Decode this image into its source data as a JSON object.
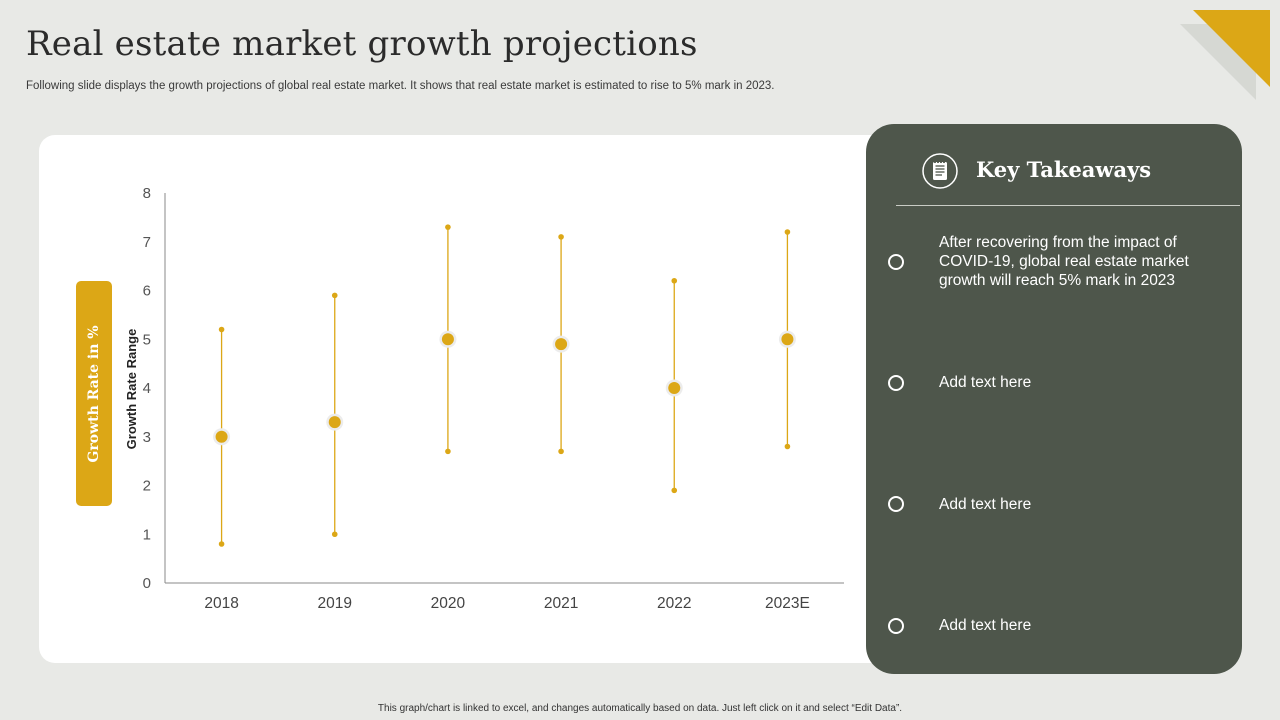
{
  "header": {
    "title": "Real estate market growth projections",
    "subtitle": "Following slide displays the growth projections of global real estate market. It shows that real estate market is estimated to rise to 5% mark in 2023."
  },
  "colors": {
    "accent": "#dca716",
    "panel": "#4e564b",
    "background": "#e8e9e6",
    "axis": "#555555"
  },
  "chart_data": {
    "type": "scatter",
    "subtype": "range-with-point",
    "title": "",
    "xlabel": "",
    "ylabel": "Growth Rate Range",
    "band_label": "Growth Rate in %",
    "categories": [
      "2018",
      "2019",
      "2020",
      "2021",
      "2022",
      "2023E"
    ],
    "low": [
      0.8,
      1.0,
      2.7,
      2.7,
      1.9,
      2.8
    ],
    "high": [
      5.2,
      5.9,
      7.3,
      7.1,
      6.2,
      7.2
    ],
    "values": [
      3.0,
      3.3,
      5.0,
      4.9,
      4.0,
      5.0
    ],
    "ylim": [
      0,
      8
    ],
    "yticks": [
      "0",
      "1",
      "2",
      "3",
      "4",
      "5",
      "6",
      "7",
      "8"
    ],
    "grid": false,
    "legend": "none"
  },
  "takeaways": {
    "title": "Key Takeaways",
    "icon": "notepad-icon",
    "items": [
      "After recovering from the impact of COVID-19, global real estate market growth will reach 5% mark in 2023",
      "Add text here",
      "Add text here",
      "Add text here"
    ]
  },
  "footer": {
    "note": "This graph/chart is linked to excel, and changes automatically based on data. Just left click on it and select “Edit Data”."
  }
}
